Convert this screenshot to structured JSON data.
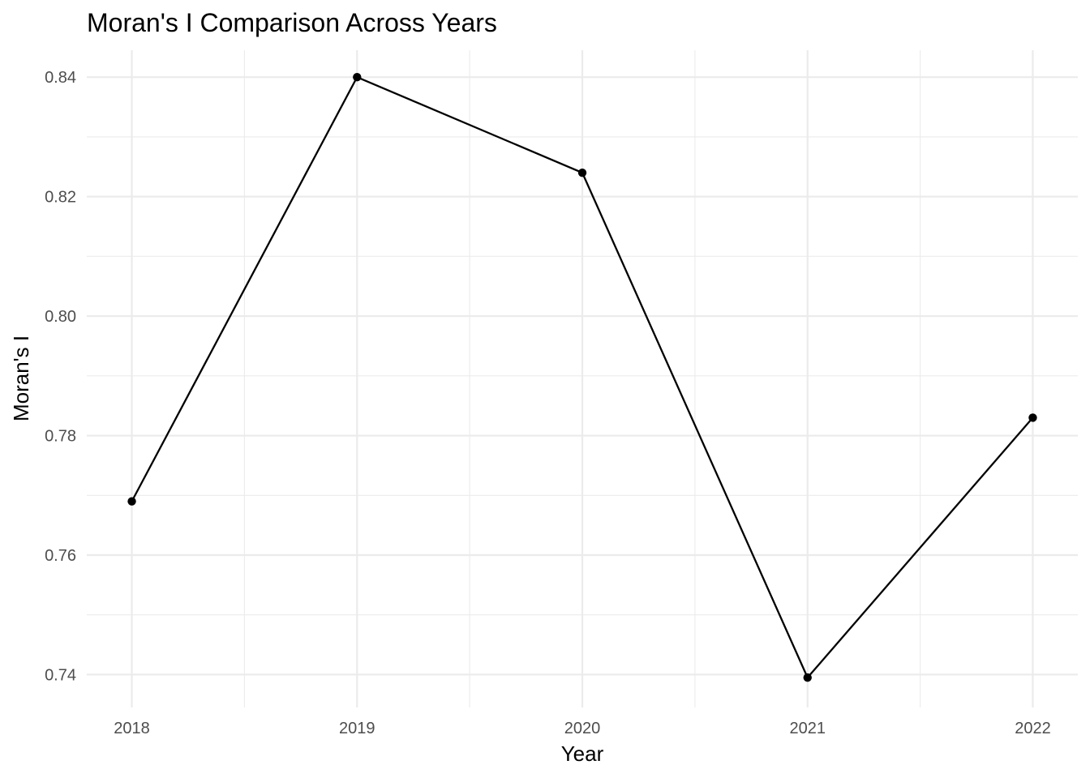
{
  "chart_data": {
    "type": "line",
    "title": "Moran's I Comparison Across Years",
    "xlabel": "Year",
    "ylabel": "Moran's I",
    "x": [
      2018,
      2019,
      2020,
      2021,
      2022
    ],
    "x_tick_labels": [
      "2018",
      "2019",
      "2020",
      "2021",
      "2022"
    ],
    "y_ticks": [
      0.74,
      0.76,
      0.78,
      0.8,
      0.82,
      0.84
    ],
    "y_tick_labels": [
      "0.74",
      "0.76",
      "0.78",
      "0.80",
      "0.82",
      "0.84"
    ],
    "series": [
      {
        "values": [
          0.769,
          0.84,
          0.824,
          0.7395,
          0.783
        ]
      }
    ],
    "ylim": [
      0.7345,
      0.8445
    ],
    "xlim": [
      2017.8,
      2022.2
    ],
    "grid": true,
    "legend": "none",
    "colors": {
      "line": "#000000",
      "grid": "#ebebeb",
      "tick_text": "#4d4d4d"
    }
  }
}
